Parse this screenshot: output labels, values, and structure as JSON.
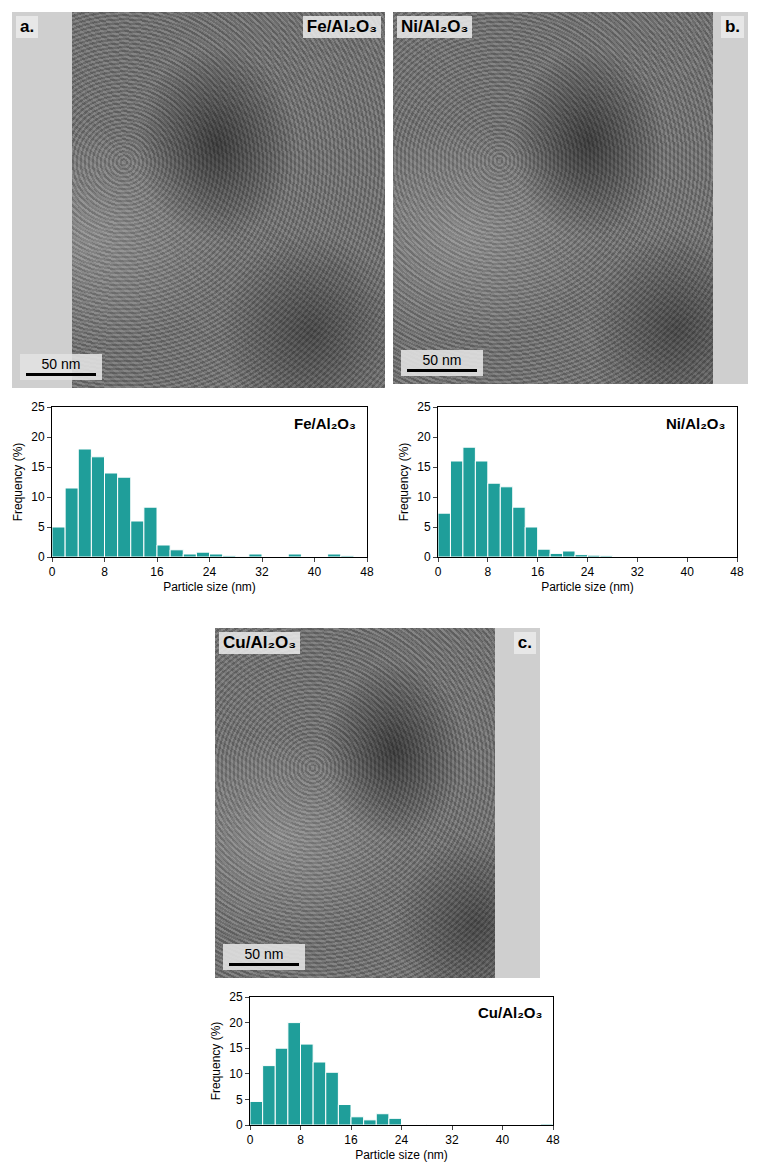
{
  "chart_data": [
    {
      "type": "histogram",
      "title": "Fe/Al₂O₃",
      "x_label": "Particle size (nm)",
      "y_label": "Frequency (%)",
      "bins": [
        0,
        2,
        4,
        6,
        8,
        10,
        12,
        14,
        16,
        18,
        20,
        22,
        24,
        26,
        28,
        30,
        32,
        34,
        36,
        38,
        40,
        42,
        44,
        46,
        48
      ],
      "values": [
        5,
        11.5,
        18,
        16.7,
        14,
        13.3,
        6,
        8.3,
        2,
        1.2,
        0.5,
        0.8,
        0.5,
        0.2,
        0.1,
        0.5,
        0,
        0,
        0.5,
        0,
        0,
        0.5,
        0.2,
        0
      ],
      "color": "#1f9e9a",
      "xlim": [
        0,
        48
      ],
      "xticks": [
        0,
        8,
        16,
        24,
        32,
        40,
        48
      ],
      "ylim": [
        0,
        25
      ],
      "yticks": [
        0,
        5,
        10,
        15,
        20,
        25
      ]
    },
    {
      "type": "histogram",
      "title": "Ni/Al₂O₃",
      "x_label": "Particle size (nm)",
      "y_label": "Frequency (%)",
      "bins": [
        0,
        2,
        4,
        6,
        8,
        10,
        12,
        14,
        16,
        18,
        20,
        22,
        24,
        26,
        28,
        30,
        32,
        34,
        36,
        38,
        40,
        42,
        44,
        46,
        48
      ],
      "values": [
        7.3,
        16,
        18.3,
        16,
        12.3,
        11.7,
        8.3,
        5,
        1.3,
        0.6,
        1,
        0.4,
        0.3,
        0.2,
        0,
        0,
        0,
        0,
        0,
        0,
        0,
        0,
        0,
        0
      ],
      "color": "#1f9e9a",
      "xlim": [
        0,
        48
      ],
      "xticks": [
        0,
        8,
        16,
        24,
        32,
        40,
        48
      ],
      "ylim": [
        0,
        25
      ],
      "yticks": [
        0,
        5,
        10,
        15,
        20,
        25
      ]
    },
    {
      "type": "histogram",
      "title": "Cu/Al₂O₃",
      "x_label": "Particle size (nm)",
      "y_label": "Frequency (%)",
      "bins": [
        0,
        2,
        4,
        6,
        8,
        10,
        12,
        14,
        16,
        18,
        20,
        22,
        24,
        26,
        28,
        30,
        32,
        34,
        36,
        38,
        40,
        42,
        44,
        46,
        48
      ],
      "values": [
        4.6,
        11.6,
        15,
        20,
        15.8,
        12.3,
        10.3,
        4,
        1.6,
        1,
        2.2,
        1.3,
        0,
        0,
        0.1,
        0.1,
        0,
        0,
        0,
        0,
        0,
        0,
        0,
        0.2
      ],
      "color": "#1f9e9a",
      "xlim": [
        0,
        48
      ],
      "xticks": [
        0,
        8,
        16,
        24,
        32,
        40,
        48
      ],
      "ylim": [
        0,
        25
      ],
      "yticks": [
        0,
        5,
        10,
        15,
        20,
        25
      ]
    }
  ],
  "images": [
    {
      "panel": "a.",
      "label": "Fe/Al₂O₃",
      "scale_bar": "50 nm"
    },
    {
      "panel": "b.",
      "label": "Ni/Al₂O₃",
      "scale_bar": "50 nm"
    },
    {
      "panel": "c.",
      "label": "Cu/Al₂O₃",
      "scale_bar": "50 nm"
    }
  ]
}
